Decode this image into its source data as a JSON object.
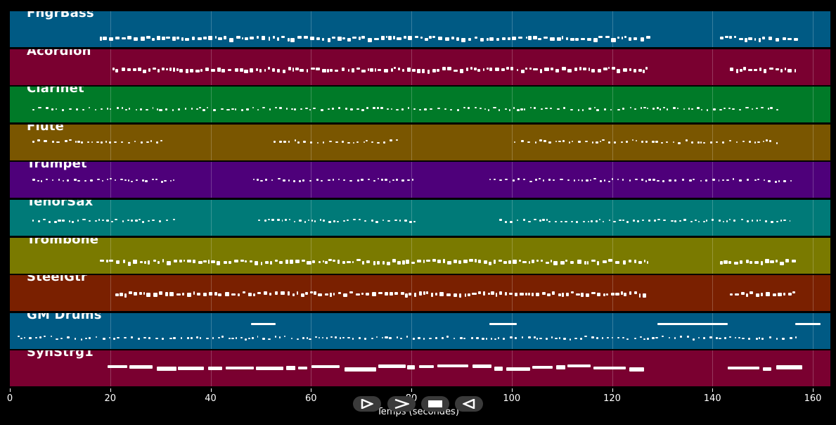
{
  "tracks": [
    {
      "name": "FngrBass",
      "color": "#005a84"
    },
    {
      "name": "Acordion",
      "color": "#7a0030"
    },
    {
      "name": "Clarinet",
      "color": "#007a28"
    },
    {
      "name": "Flute",
      "color": "#7a5600"
    },
    {
      "name": "Trumpet",
      "color": "#4e007a"
    },
    {
      "name": "TenorSax",
      "color": "#007a78"
    },
    {
      "name": "Trombone",
      "color": "#7a7a00"
    },
    {
      "name": "SteelGtr",
      "color": "#7a2000"
    },
    {
      "name": "GM Drums",
      "color": "#005a84"
    },
    {
      "name": "SynStrg1",
      "color": "#7a0030"
    }
  ],
  "axis": {
    "xlim": [
      0,
      163.5
    ],
    "ticks": [
      "0",
      "20",
      "40",
      "60",
      "80",
      "100",
      "120",
      "140",
      "160"
    ],
    "label": "Temps (secondes)"
  },
  "controls": [
    {
      "name": "play-icon"
    },
    {
      "name": "forward-icon"
    },
    {
      "name": "stop-icon"
    },
    {
      "name": "rewind-icon"
    }
  ]
}
